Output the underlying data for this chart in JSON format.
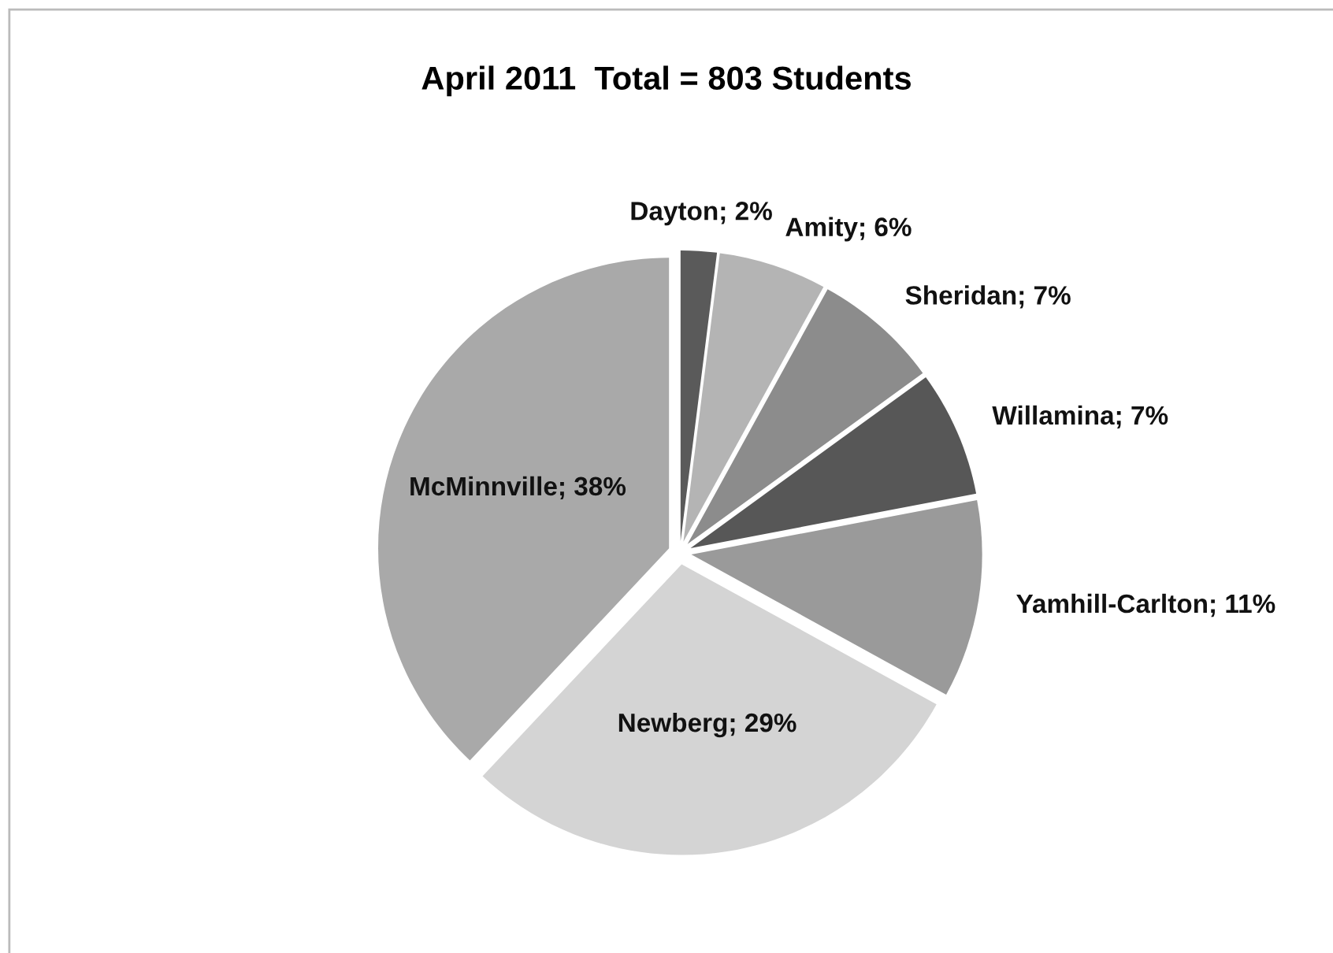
{
  "chart_data": {
    "type": "pie",
    "title": "April 2011  Total = 803 Students",
    "categories": [
      "Dayton",
      "Amity",
      "Sheridan",
      "Willamina",
      "Yamhill-Carlton",
      "Newberg",
      "McMinnville"
    ],
    "values": [
      2,
      6,
      7,
      7,
      11,
      29,
      38
    ],
    "colors": [
      "#5a5a5a",
      "#b4b4b4",
      "#8c8c8c",
      "#575757",
      "#9a9a9a",
      "#d4d4d4",
      "#a9a9a9"
    ],
    "value_labels": [
      "2%",
      "6%",
      "7%",
      "7%",
      "11%",
      "29%",
      "38%"
    ],
    "legend": false
  }
}
